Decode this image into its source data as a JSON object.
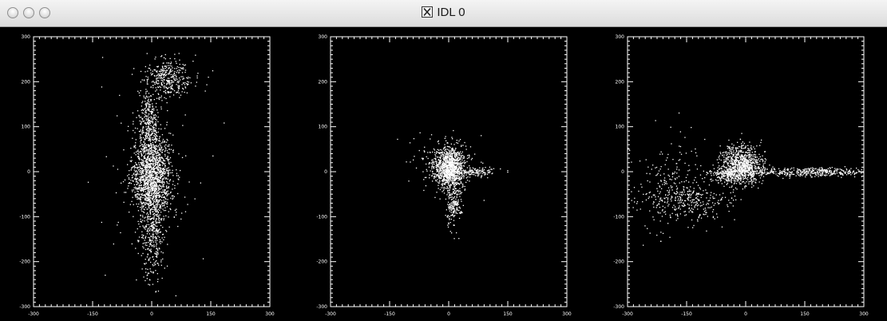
{
  "window": {
    "title": "IDL 0",
    "controls": [
      "close",
      "minimize",
      "zoom"
    ],
    "app_icon": "x11-icon"
  },
  "chart_data": [
    {
      "type": "scatter",
      "title": "",
      "xlabel": "",
      "ylabel": "",
      "xlim": [
        -300,
        300
      ],
      "ylim": [
        -300,
        300
      ],
      "x_ticks": [
        "-300",
        "-150",
        "0",
        "150",
        "300"
      ],
      "y_ticks": [
        "-300",
        "-200",
        "-100",
        "0",
        "100",
        "200",
        "300"
      ],
      "background": "#000000",
      "point_color": "#ffffff",
      "clusters": [
        {
          "x": 0,
          "y": -10,
          "sx": 25,
          "sy": 45,
          "n": 1500
        },
        {
          "x": -8,
          "y": 100,
          "sx": 12,
          "sy": 45,
          "n": 350
        },
        {
          "x": 40,
          "y": 210,
          "sx": 30,
          "sy": 22,
          "n": 350
        },
        {
          "x": 0,
          "y": -140,
          "sx": 16,
          "sy": 55,
          "n": 350
        },
        {
          "x": -5,
          "y": -5,
          "sx": 65,
          "sy": 130,
          "n": 120
        }
      ]
    },
    {
      "type": "scatter",
      "title": "",
      "xlabel": "",
      "ylabel": "",
      "xlim": [
        -300,
        300
      ],
      "ylim": [
        -300,
        300
      ],
      "x_ticks": [
        "-300",
        "-150",
        "0",
        "150",
        "300"
      ],
      "y_ticks": [
        "-300",
        "-200",
        "-100",
        "0",
        "100",
        "200",
        "300"
      ],
      "background": "#000000",
      "point_color": "#ffffff",
      "clusters": [
        {
          "x": 0,
          "y": 10,
          "sx": 20,
          "sy": 22,
          "n": 1100
        },
        {
          "x": 60,
          "y": 0,
          "sx": 32,
          "sy": 5,
          "n": 150
        },
        {
          "x": 10,
          "y": -70,
          "sx": 10,
          "sy": 25,
          "n": 200
        },
        {
          "x": -15,
          "y": 20,
          "sx": 45,
          "sy": 35,
          "n": 120
        }
      ]
    },
    {
      "type": "scatter",
      "title": "",
      "xlabel": "",
      "ylabel": "",
      "xlim": [
        -300,
        300
      ],
      "ylim": [
        -300,
        300
      ],
      "x_ticks": [
        "-300",
        "-150",
        "0",
        "150",
        "300"
      ],
      "y_ticks": [
        "-300",
        "-200",
        "-100",
        "0",
        "100",
        "200",
        "300"
      ],
      "background": "#000000",
      "point_color": "#ffffff",
      "clusters": [
        {
          "x": -10,
          "y": 15,
          "sx": 26,
          "sy": 22,
          "n": 900
        },
        {
          "x": -50,
          "y": -5,
          "sx": 22,
          "sy": 8,
          "n": 200
        },
        {
          "x": 180,
          "y": 0,
          "sx": 90,
          "sy": 5,
          "n": 450
        },
        {
          "x": -150,
          "y": -60,
          "sx": 55,
          "sy": 28,
          "n": 350
        },
        {
          "x": -190,
          "y": -20,
          "sx": 45,
          "sy": 60,
          "n": 120
        }
      ]
    }
  ]
}
